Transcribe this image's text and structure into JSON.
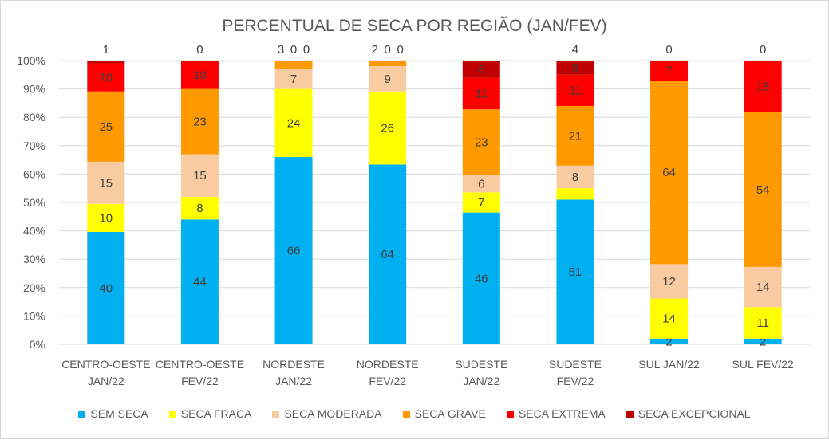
{
  "chart_data": {
    "type": "bar",
    "stacked": "percent",
    "title": "PERCENTUAL DE SECA POR REGIÃO (JAN/FEV)",
    "categories": [
      "CENTRO-OESTE JAN/22",
      "CENTRO-OESTE FEV/22",
      "NORDESTE JAN/22",
      "NORDESTE FEV/22",
      "SUDESTE JAN/22",
      "SUDESTE FEV/22",
      "SUL JAN/22",
      "SUL FEV/22"
    ],
    "category_lines": [
      [
        "CENTRO-OESTE",
        "JAN/22"
      ],
      [
        "CENTRO-OESTE",
        "FEV/22"
      ],
      [
        "NORDESTE",
        "JAN/22"
      ],
      [
        "NORDESTE",
        "FEV/22"
      ],
      [
        "SUDESTE",
        "JAN/22"
      ],
      [
        "SUDESTE",
        "FEV/22"
      ],
      [
        "SUL JAN/22",
        ""
      ],
      [
        "SUL FEV/22",
        ""
      ]
    ],
    "series": [
      {
        "name": "SEM SECA",
        "color": "#00b0f0",
        "values": [
          40,
          44,
          66,
          64,
          46,
          51,
          2,
          2
        ]
      },
      {
        "name": "SECA FRACA",
        "color": "#ffff00",
        "values": [
          10,
          8,
          24,
          26,
          7,
          4,
          14,
          11
        ]
      },
      {
        "name": "SECA MODERADA",
        "color": "#f8cba0",
        "values": [
          15,
          15,
          7,
          9,
          6,
          8,
          12,
          14
        ]
      },
      {
        "name": "SECA GRAVE",
        "color": "#ff9900",
        "values": [
          25,
          23,
          3,
          2,
          23,
          21,
          64,
          54
        ]
      },
      {
        "name": "SECA EXTREMA",
        "color": "#ff0000",
        "values": [
          10,
          10,
          0,
          0,
          11,
          11,
          7,
          18
        ]
      },
      {
        "name": "SECA EXCEPCIONAL",
        "color": "#c00000",
        "values": [
          1,
          0,
          0,
          0,
          6,
          5,
          0,
          0
        ]
      }
    ],
    "yticks": [
      "0%",
      "10%",
      "20%",
      "30%",
      "40%",
      "50%",
      "60%",
      "70%",
      "80%",
      "90%",
      "100%"
    ],
    "ylim": [
      0,
      100
    ],
    "grid": true,
    "legend": "bottom"
  }
}
